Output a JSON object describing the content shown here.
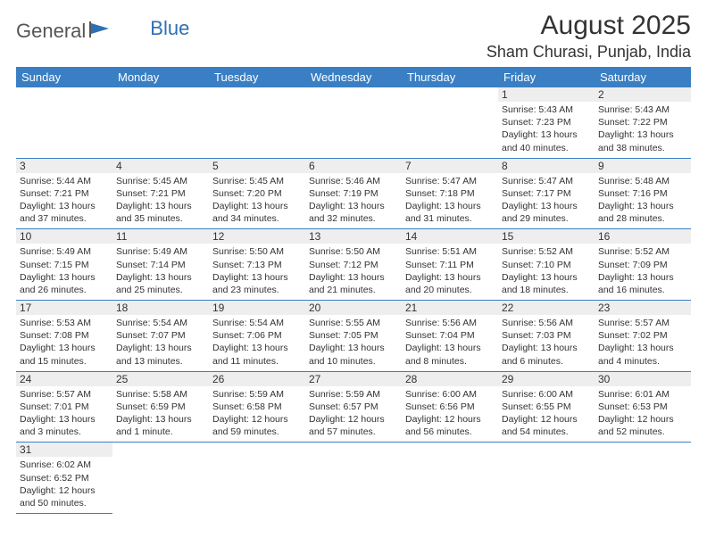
{
  "logo": {
    "text1": "General",
    "text2": "Blue"
  },
  "title": "August 2025",
  "location": "Sham Churasi, Punjab, India",
  "weekdays": [
    "Sunday",
    "Monday",
    "Tuesday",
    "Wednesday",
    "Thursday",
    "Friday",
    "Saturday"
  ],
  "header_bg": "#3a7fc4",
  "header_fg": "#ffffff",
  "daynum_bg": "#eeeeee",
  "border_color": "#3a7fc4",
  "text_color": "#333333",
  "font_family": "Arial, Helvetica, sans-serif",
  "font_size_body": 10.5,
  "font_size_header": 13,
  "font_size_title": 30,
  "font_size_location": 18,
  "weeks": [
    [
      null,
      null,
      null,
      null,
      null,
      {
        "n": "1",
        "sunrise": "5:43 AM",
        "sunset": "7:23 PM",
        "day": "13 hours and 40 minutes."
      },
      {
        "n": "2",
        "sunrise": "5:43 AM",
        "sunset": "7:22 PM",
        "day": "13 hours and 38 minutes."
      }
    ],
    [
      {
        "n": "3",
        "sunrise": "5:44 AM",
        "sunset": "7:21 PM",
        "day": "13 hours and 37 minutes."
      },
      {
        "n": "4",
        "sunrise": "5:45 AM",
        "sunset": "7:21 PM",
        "day": "13 hours and 35 minutes."
      },
      {
        "n": "5",
        "sunrise": "5:45 AM",
        "sunset": "7:20 PM",
        "day": "13 hours and 34 minutes."
      },
      {
        "n": "6",
        "sunrise": "5:46 AM",
        "sunset": "7:19 PM",
        "day": "13 hours and 32 minutes."
      },
      {
        "n": "7",
        "sunrise": "5:47 AM",
        "sunset": "7:18 PM",
        "day": "13 hours and 31 minutes."
      },
      {
        "n": "8",
        "sunrise": "5:47 AM",
        "sunset": "7:17 PM",
        "day": "13 hours and 29 minutes."
      },
      {
        "n": "9",
        "sunrise": "5:48 AM",
        "sunset": "7:16 PM",
        "day": "13 hours and 28 minutes."
      }
    ],
    [
      {
        "n": "10",
        "sunrise": "5:49 AM",
        "sunset": "7:15 PM",
        "day": "13 hours and 26 minutes."
      },
      {
        "n": "11",
        "sunrise": "5:49 AM",
        "sunset": "7:14 PM",
        "day": "13 hours and 25 minutes."
      },
      {
        "n": "12",
        "sunrise": "5:50 AM",
        "sunset": "7:13 PM",
        "day": "13 hours and 23 minutes."
      },
      {
        "n": "13",
        "sunrise": "5:50 AM",
        "sunset": "7:12 PM",
        "day": "13 hours and 21 minutes."
      },
      {
        "n": "14",
        "sunrise": "5:51 AM",
        "sunset": "7:11 PM",
        "day": "13 hours and 20 minutes."
      },
      {
        "n": "15",
        "sunrise": "5:52 AM",
        "sunset": "7:10 PM",
        "day": "13 hours and 18 minutes."
      },
      {
        "n": "16",
        "sunrise": "5:52 AM",
        "sunset": "7:09 PM",
        "day": "13 hours and 16 minutes."
      }
    ],
    [
      {
        "n": "17",
        "sunrise": "5:53 AM",
        "sunset": "7:08 PM",
        "day": "13 hours and 15 minutes."
      },
      {
        "n": "18",
        "sunrise": "5:54 AM",
        "sunset": "7:07 PM",
        "day": "13 hours and 13 minutes."
      },
      {
        "n": "19",
        "sunrise": "5:54 AM",
        "sunset": "7:06 PM",
        "day": "13 hours and 11 minutes."
      },
      {
        "n": "20",
        "sunrise": "5:55 AM",
        "sunset": "7:05 PM",
        "day": "13 hours and 10 minutes."
      },
      {
        "n": "21",
        "sunrise": "5:56 AM",
        "sunset": "7:04 PM",
        "day": "13 hours and 8 minutes."
      },
      {
        "n": "22",
        "sunrise": "5:56 AM",
        "sunset": "7:03 PM",
        "day": "13 hours and 6 minutes."
      },
      {
        "n": "23",
        "sunrise": "5:57 AM",
        "sunset": "7:02 PM",
        "day": "13 hours and 4 minutes."
      }
    ],
    [
      {
        "n": "24",
        "sunrise": "5:57 AM",
        "sunset": "7:01 PM",
        "day": "13 hours and 3 minutes."
      },
      {
        "n": "25",
        "sunrise": "5:58 AM",
        "sunset": "6:59 PM",
        "day": "13 hours and 1 minute."
      },
      {
        "n": "26",
        "sunrise": "5:59 AM",
        "sunset": "6:58 PM",
        "day": "12 hours and 59 minutes."
      },
      {
        "n": "27",
        "sunrise": "5:59 AM",
        "sunset": "6:57 PM",
        "day": "12 hours and 57 minutes."
      },
      {
        "n": "28",
        "sunrise": "6:00 AM",
        "sunset": "6:56 PM",
        "day": "12 hours and 56 minutes."
      },
      {
        "n": "29",
        "sunrise": "6:00 AM",
        "sunset": "6:55 PM",
        "day": "12 hours and 54 minutes."
      },
      {
        "n": "30",
        "sunrise": "6:01 AM",
        "sunset": "6:53 PM",
        "day": "12 hours and 52 minutes."
      }
    ],
    [
      {
        "n": "31",
        "sunrise": "6:02 AM",
        "sunset": "6:52 PM",
        "day": "12 hours and 50 minutes."
      },
      null,
      null,
      null,
      null,
      null,
      null
    ]
  ],
  "labels": {
    "sunrise": "Sunrise: ",
    "sunset": "Sunset: ",
    "daylight": "Daylight: "
  }
}
